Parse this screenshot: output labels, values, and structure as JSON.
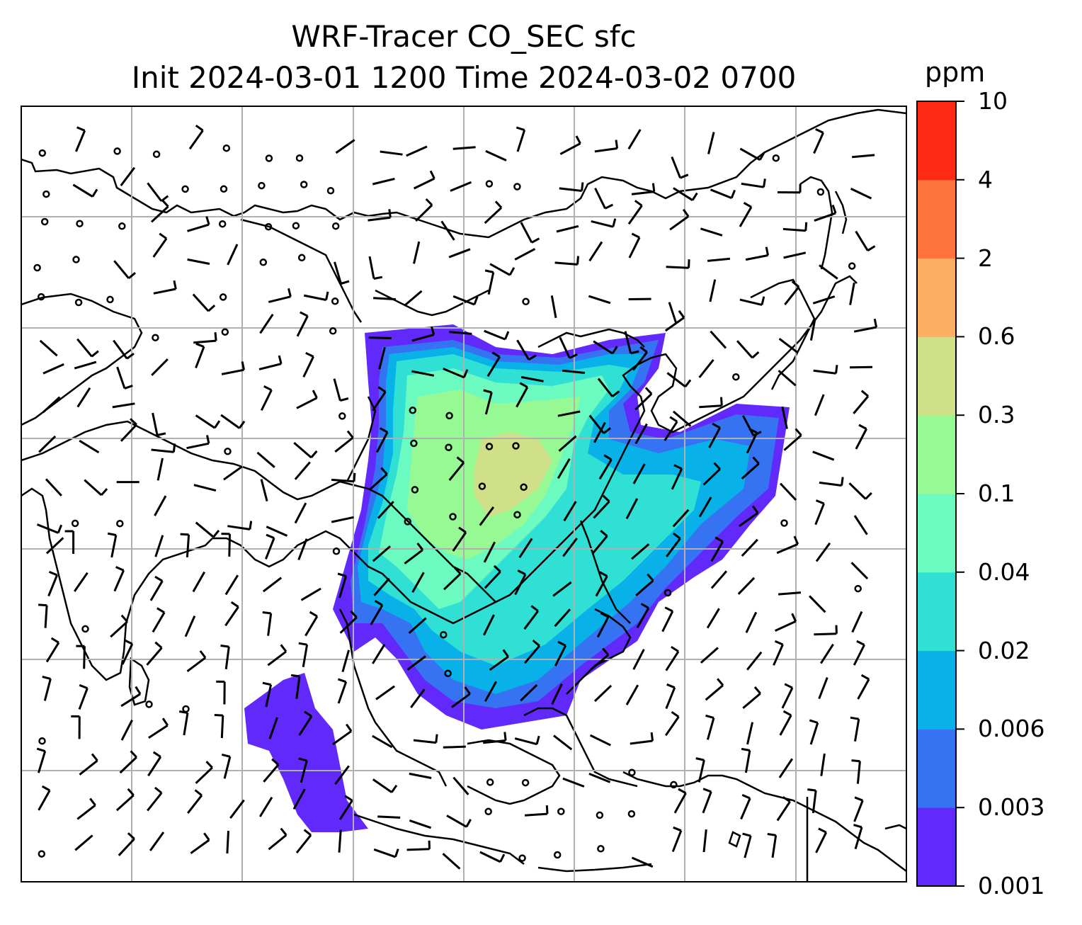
{
  "title": {
    "line1": "WRF-Tracer CO_SEC sfc",
    "line2": "Init 2024-03-01 1200 Time 2024-03-02 0700"
  },
  "colorbar": {
    "unit": "ppm",
    "ticks": [
      "10",
      "4",
      "2",
      "0.6",
      "0.3",
      "0.1",
      "0.04",
      "0.02",
      "0.006",
      "0.003",
      "0.001"
    ],
    "colors": [
      "#6229fb",
      "#3573f3",
      "#08b2e8",
      "#30e0d5",
      "#6bfac0",
      "#97f993",
      "#cfe088",
      "#fdb064",
      "#ff733d",
      "#ff2a16"
    ]
  },
  "map": {
    "field": "CO_SEC tracer concentration at surface",
    "wind_barbs": true,
    "gridlines": true,
    "region": "East / Southeast / South Asia"
  }
}
